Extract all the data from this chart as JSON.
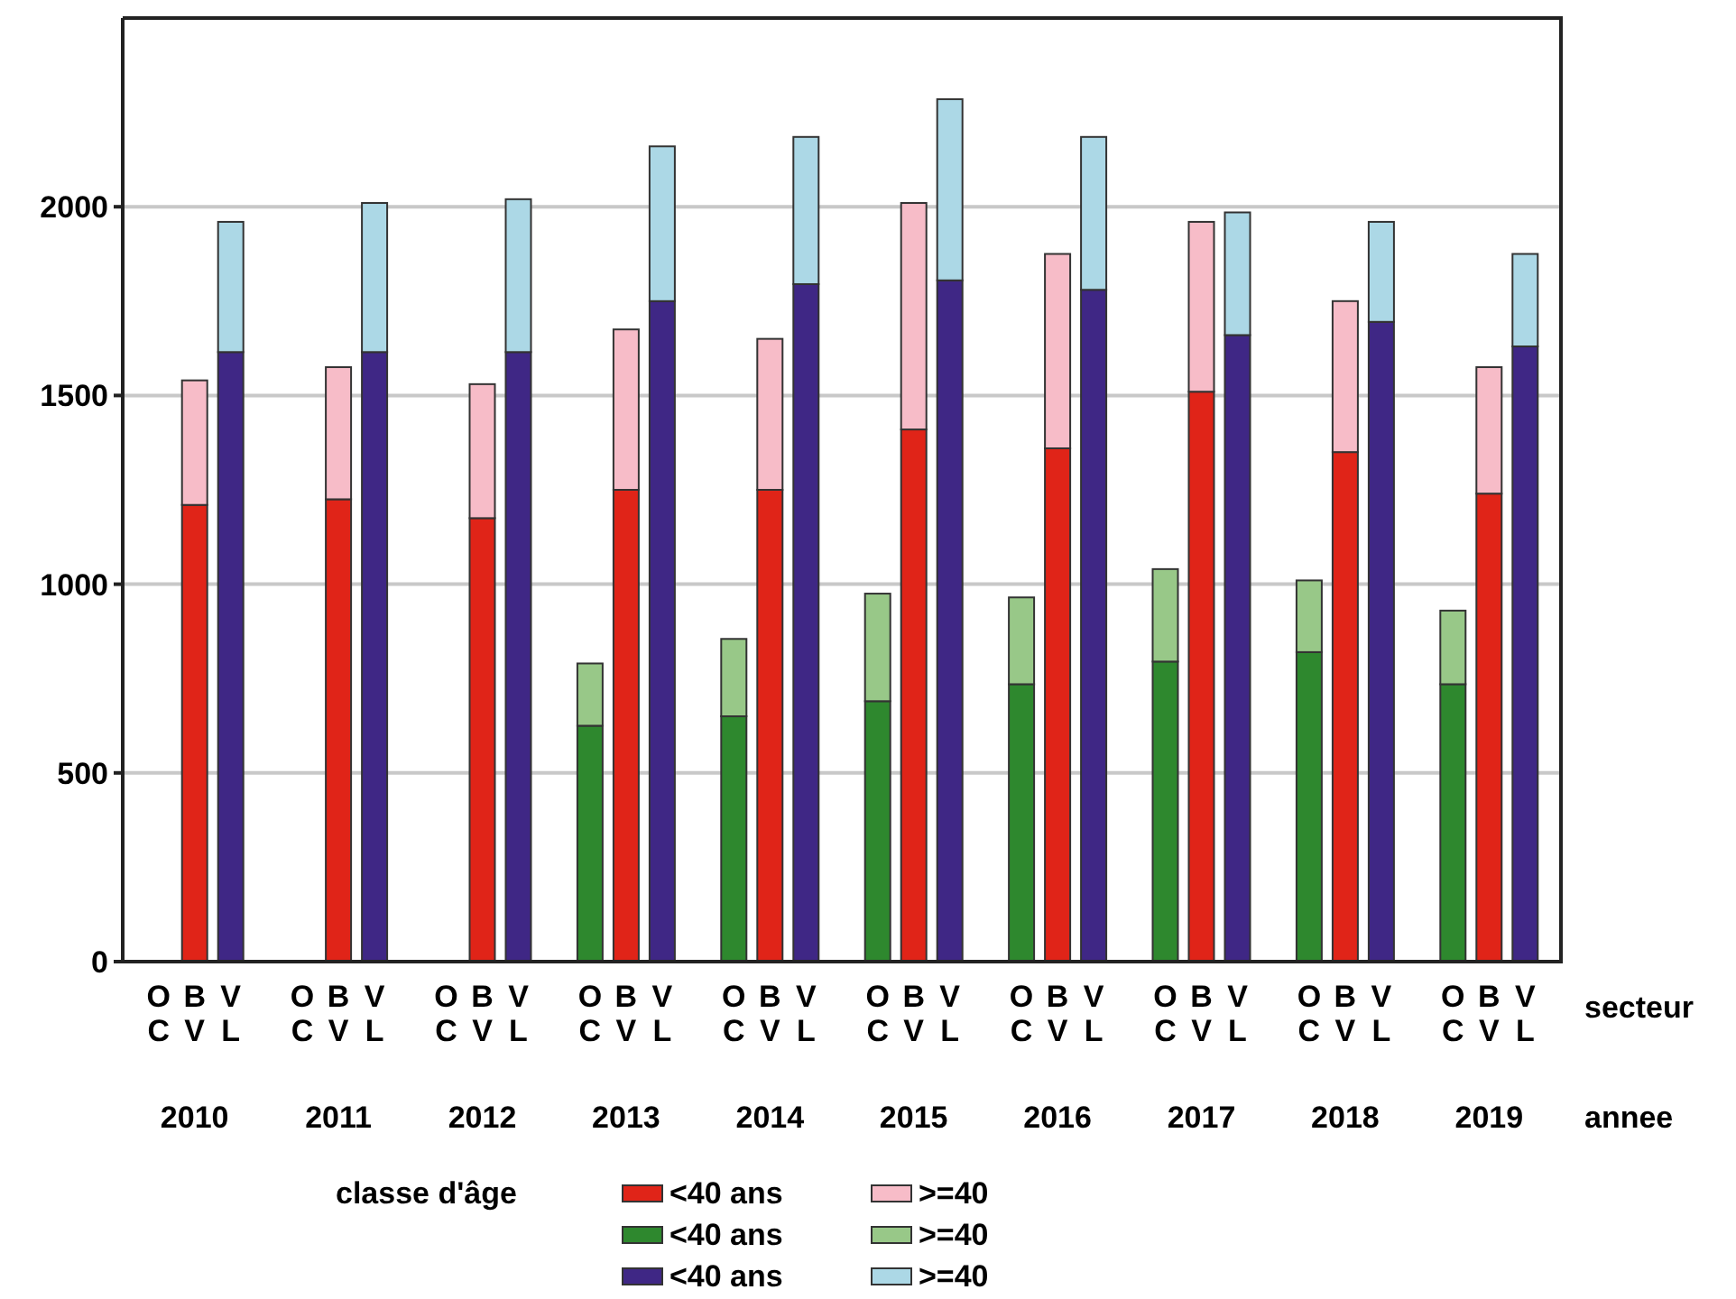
{
  "chart_data": {
    "type": "bar",
    "stacked": true,
    "categories": [
      "OC",
      "BV",
      "VL",
      "OC",
      "BV",
      "VL",
      "OC",
      "BV",
      "VL",
      "OC",
      "BV",
      "VL",
      "OC",
      "BV",
      "VL",
      "OC",
      "BV",
      "VL",
      "OC",
      "BV",
      "VL",
      "OC",
      "BV",
      "VL",
      "OC",
      "BV",
      "VL",
      "OC",
      "BV",
      "VL"
    ],
    "xlabel": "secteur",
    "annotations": [
      "2010",
      "2011",
      "2012",
      "2013",
      "2014",
      "2015",
      "2016",
      "2017",
      "2018",
      "2019",
      "annee"
    ],
    "legend_title": "classe d'âge",
    "legend": "bottom",
    "grid": "y",
    "ylim": [
      0,
      2500
    ],
    "yticks": [
      0,
      500,
      1000,
      1500,
      2000
    ],
    "series": [
      {
        "name": "<40 ans",
        "color": "#e02418",
        "values": [
          null,
          1210,
          null,
          null,
          1225,
          null,
          null,
          1175,
          null,
          null,
          1250,
          null,
          null,
          1250,
          null,
          null,
          1410,
          null,
          null,
          1360,
          null,
          null,
          1510,
          null,
          null,
          1350,
          null,
          null,
          1240,
          null
        ]
      },
      {
        "name": ">=40",
        "color": "#f7bcc8",
        "values": [
          null,
          330,
          null,
          null,
          350,
          null,
          null,
          355,
          null,
          null,
          425,
          null,
          null,
          400,
          null,
          null,
          600,
          null,
          null,
          515,
          null,
          null,
          450,
          null,
          null,
          400,
          null,
          null,
          335,
          null
        ]
      },
      {
        "name": "<40 ans",
        "color": "#2e882e",
        "values": [
          null,
          null,
          null,
          null,
          null,
          null,
          null,
          null,
          null,
          625,
          null,
          null,
          650,
          null,
          null,
          690,
          null,
          null,
          735,
          null,
          null,
          795,
          null,
          null,
          820,
          null,
          null,
          735,
          null,
          null
        ]
      },
      {
        "name": ">=40",
        "color": "#98c888",
        "values": [
          null,
          null,
          null,
          null,
          null,
          null,
          null,
          null,
          null,
          165,
          null,
          null,
          205,
          null,
          null,
          285,
          null,
          null,
          230,
          null,
          null,
          245,
          null,
          null,
          190,
          null,
          null,
          195,
          null,
          null
        ]
      },
      {
        "name": "<40 ans",
        "color": "#3f2785",
        "values": [
          null,
          null,
          1615,
          null,
          null,
          1615,
          null,
          null,
          1615,
          null,
          null,
          1750,
          null,
          null,
          1795,
          null,
          null,
          1805,
          null,
          null,
          1780,
          null,
          null,
          1660,
          null,
          null,
          1695,
          null,
          null,
          1630
        ]
      },
      {
        "name": ">=40",
        "color": "#acd8e6",
        "values": [
          null,
          null,
          345,
          null,
          null,
          395,
          null,
          null,
          405,
          null,
          null,
          410,
          null,
          null,
          390,
          null,
          null,
          480,
          null,
          null,
          405,
          null,
          null,
          325,
          null,
          null,
          265,
          null,
          null,
          245
        ]
      }
    ]
  }
}
